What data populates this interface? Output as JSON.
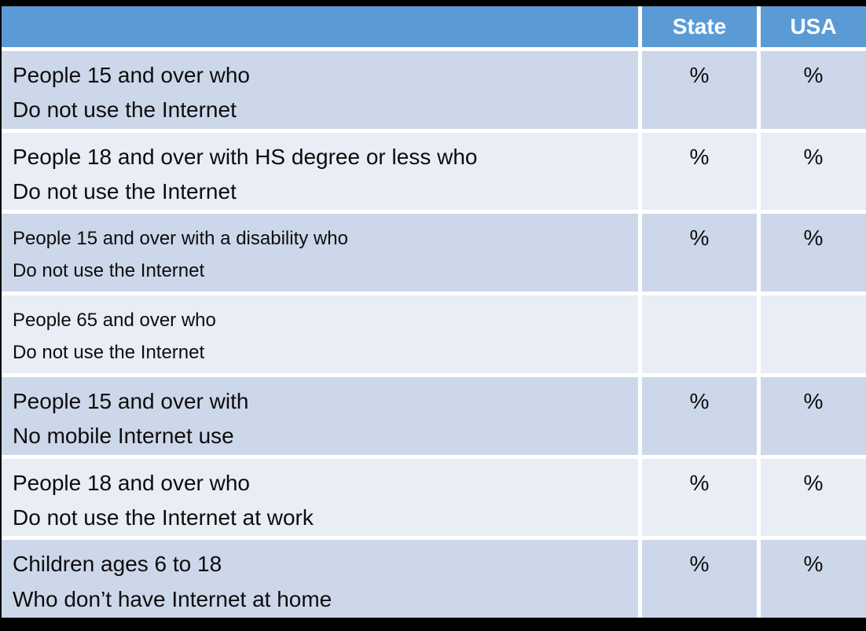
{
  "table": {
    "header": {
      "corner": "",
      "state": "State",
      "usa": "USA"
    },
    "rows": [
      {
        "line1": "People 15 and over who",
        "line2": "Do not use the Internet",
        "state": "%",
        "usa": "%"
      },
      {
        "line1": "People 18 and over with HS degree or less who",
        "line2": "Do not use the Internet",
        "state": "%",
        "usa": "%"
      },
      {
        "line1": "People 15 and over with a disability who",
        "line2": "Do not use the Internet",
        "state": "%",
        "usa": "%"
      },
      {
        "line1": "People 65 and over who",
        "line2": "Do not use the Internet",
        "state": "",
        "usa": ""
      },
      {
        "line1": "People 15 and over with",
        "line2": "No mobile Internet use",
        "state": "%",
        "usa": "%"
      },
      {
        "line1": "People 18 and over who",
        "line2": "Do not use the Internet at work",
        "state": "%",
        "usa": "%"
      },
      {
        "line1": "Children ages 6 to 18",
        "line2": "Who don’t have Internet at home",
        "state": "%",
        "usa": "%"
      }
    ]
  },
  "colors": {
    "header_blue": "#5b9bd5",
    "band_dark": "#cdd7ea",
    "band_light": "#e9edf5",
    "gap_white": "#ffffff",
    "frame_black": "#000000",
    "header_text": "#ffffff",
    "body_text": "#0d0d0d"
  }
}
